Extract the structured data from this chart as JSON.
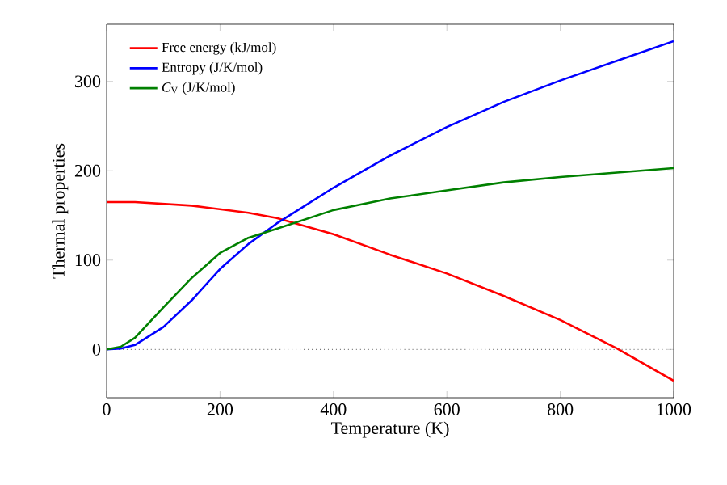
{
  "chart_data": {
    "type": "line",
    "xlabel": "Temperature (K)",
    "ylabel": "Thermal properties",
    "xlim": [
      0,
      1000
    ],
    "ylim": [
      -54,
      364
    ],
    "xticks": [
      0,
      200,
      400,
      600,
      800,
      1000
    ],
    "yticks": [
      0,
      100,
      200,
      300
    ],
    "grid": false,
    "legend": "top left",
    "marker": "none",
    "line_style": "solid",
    "x": [
      0,
      25,
      50,
      100,
      150,
      200,
      250,
      300,
      400,
      500,
      600,
      700,
      800,
      900,
      1000
    ],
    "series": [
      {
        "name": "Free energy (kJ/mol)",
        "color": "#ff0000",
        "values": [
          165,
          165,
          165,
          163,
          161,
          157,
          153,
          147,
          129,
          106,
          85,
          60,
          33,
          1,
          -35
        ]
      },
      {
        "name": "Entropy (J/K/mol)",
        "color": "#0000ff",
        "values": [
          0,
          1,
          5,
          25,
          55,
          90,
          118,
          141,
          181,
          217,
          249,
          277,
          301,
          323,
          345
        ]
      },
      {
        "name": "*C*$_{V}$ (J/K/mol)",
        "color": "#008000",
        "values": [
          0,
          3,
          13,
          47,
          80,
          108,
          125,
          135,
          156,
          169,
          178,
          187,
          193,
          198,
          203
        ]
      }
    ],
    "ref_lines": [
      {
        "axis": "y",
        "value": 0,
        "color": "#555555",
        "line_style": "dotted"
      }
    ]
  }
}
